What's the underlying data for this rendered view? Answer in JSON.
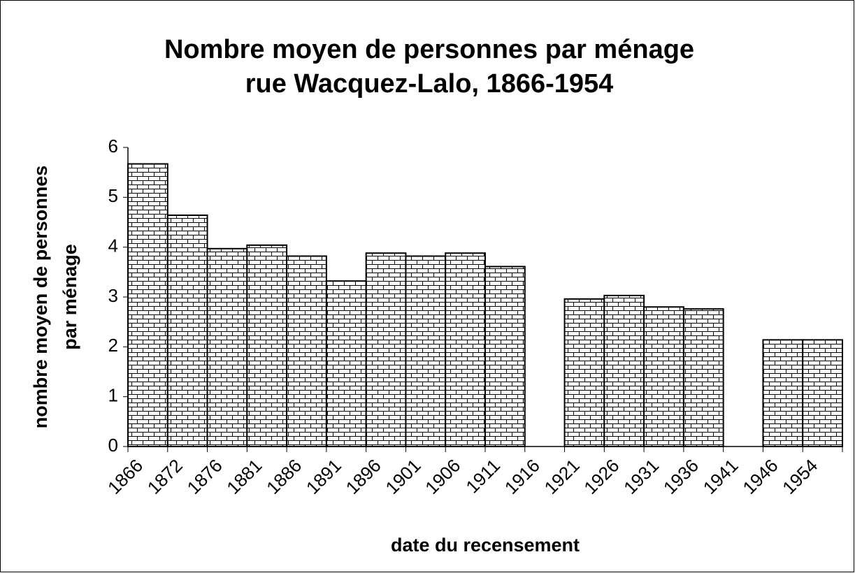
{
  "chart_data": {
    "type": "bar",
    "title": [
      "Nombre moyen de personnes par ménage",
      "rue Wacquez-Lalo, 1866-1954"
    ],
    "ylabel": [
      "nombre moyen de personnes",
      "par ménage"
    ],
    "xlabel": "date du recensement",
    "categories": [
      "1866",
      "1872",
      "1876",
      "1881",
      "1886",
      "1891",
      "1896",
      "1901",
      "1906",
      "1911",
      "1916",
      "1921",
      "1926",
      "1931",
      "1936",
      "1941",
      "1946",
      "1954"
    ],
    "values": [
      5.67,
      4.64,
      3.97,
      4.04,
      3.82,
      3.32,
      3.88,
      3.82,
      3.88,
      3.61,
      null,
      2.96,
      3.03,
      2.8,
      2.76,
      null,
      2.14,
      2.14
    ],
    "ylim": [
      0,
      6
    ],
    "yticks": [
      0,
      1,
      2,
      3,
      4,
      5,
      6
    ],
    "grid": false
  }
}
